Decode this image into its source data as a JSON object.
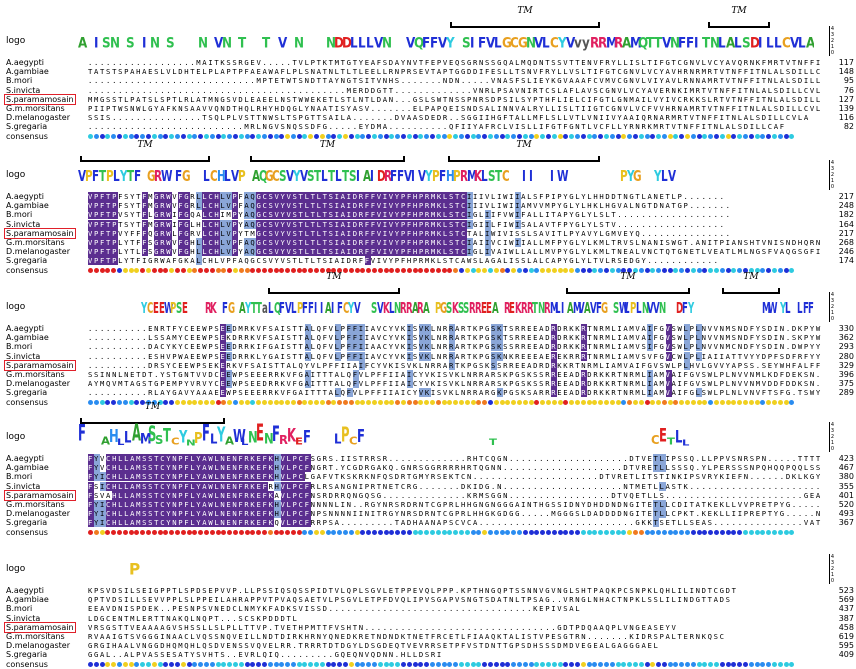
{
  "labels": {
    "logo": "logo",
    "consensus": "consensus",
    "tm": "TM"
  },
  "logo_scale": [
    "4",
    "3",
    "2",
    "1",
    "0"
  ],
  "colors": {
    "highlight_dark": "#5b2e8f",
    "highlight_light": "#8aa6d8",
    "box_red": "#e0202a",
    "dot_palette": [
      "#1f2fd6",
      "#2a8cf0",
      "#2ecbe0",
      "#f0d020",
      "#f07a20",
      "#e02020",
      "#30c050"
    ]
  },
  "blocks": [
    {
      "logo_text": "AxISNxSxINxSxxxNxVNxTxxTxVxNxxxNDDLLLVNxxVQFFVYxSIFVLGCGNVLCYVvyRRMRAMQTTVNFFITNLALSDILLCVLA",
      "rows": [
        {
          "name": "A.aegypti",
          "seq": "..................MAITKSSRGEV.....TVLPTKTMTGTYEAFSDAYNVTFEPVEQSGRNSSGQALMQDNTSSVTTENVFRYLLISLTIFGTCGNVLVCYAVQRNKFMRTVTNFFITNLALSDILLCVLA",
          "num": "117"
        },
        {
          "name": "A.gambiae",
          "seq": "TATSTSPAHAESLVLDHTELPLAPTPFAEAWAFLPLSNATNLTLTLEELLRNPRSEVTAPTGGDDIFESLLTSNVFRYLLVSLTIFGTCGNVLVCYAVHRNRMRTVTNFFITNLALSDILLCVLA",
          "num": "148"
        },
        {
          "name": "B.mori",
          "seq": "............................MPTETWTSNDTTAYNGTSITVNHS.......NDN.....VNASFSLIEYKGVAAAFCVMVCGNVLVIYAVLRNNAMRTVTNFFITNLALSDILLCVLA",
          "num": "95"
        },
        {
          "name": "S.invicta",
          "seq": "...........................................MERDDGTT.............VNRLPSAVNIRTCSLAFLAVSCGNVLVCYAVERNKIMRTVTNFFITNLALSDILLCVLA",
          "num": "76"
        },
        {
          "name": "S.paramamosain",
          "seq": "MMGSSTLPATSLSPTLRLATMNGSVDLEAEELNSTWWEKETLSTLNTLDAN...GSLSWTNSSPNRSDPSILSYPTHFLIELCIFGTLGNMAILVYIVCRKKSLRTVTNFFITNLALSDILLCLLS",
          "num": "127",
          "highlight": true
        },
        {
          "name": "G.m.morsitans",
          "seq": "PIIPTWSNWLGYAFKNSAAVVQNDTHQLRHYHDQGLYNAATISYASV.......ELPAPQEISNDSALINNVALRYLLISLTIIGTCGNVLVCFVVHRNAMRTVTNFFITNLALSDILLCVLA",
          "num": "139"
        },
        {
          "name": "D.melanogaster",
          "seq": "SSIS...............TSQLPLVSTTNWSLTSPGTTSAILA.......DVAASDEDR..SGGIIHGFTALLMFLSLLVTLVNIIVYAAIQRNARMRTVTNFFITNLALSDILLCVLA",
          "num": "116"
        },
        {
          "name": "S.gregaria",
          "seq": "..........................MRLNGVSNQSSDFG.....EYDMA..........QFIIYAFRCLVISLLIFGTFGNTLVCFLLYRNRKMRTVTNFFITNLALSDILLCAF",
          "num": "82"
        }
      ]
    },
    {
      "logo_text": "VPFTPLYTFxGRWxFGxxLCHLVPxAQGCSVYVSTLTLTSIAIDRFFVIVYPFHPRMKLSTCxxIIxxIWxxxxxxxxPYGxxYLVxxxxxxxxxxxxxxxxxxxx",
      "rows": [
        {
          "name": "A.aegypti",
          "seq": "VPFTPFSYTFMGRWVFGRLLCHLVPFAQGCSVYVSTLTLTSIAIDRFFVIVYPFHPRMKLSTCIIIVLIWIIALSFPIPYGLYLHHDDTNGTLANETLP.......",
          "num": "217"
        },
        {
          "name": "A.gambiae",
          "seq": "VPFTPFSYTFMGRWVFGRLLCHLVPFAQGCSVYVSTLTLTSIAIDRFFVIVYPFHPRMKLSTCIIIVLIWIIAMVVMPYGLYLHKLHGVALNGTDNATGP.......",
          "num": "248"
        },
        {
          "name": "B.mori",
          "seq": "VPFTPVSYTFLGRWIFGQALCHIMPYAQGCSVYVSTLTLTSIAIDRFFVIVYPFHPRMKLSTCIGLIIFVWIFALLITAPYGLYLSLT...................",
          "num": "182"
        },
        {
          "name": "S.invicta",
          "seq": "VPFTPTSYTFMGRWIFGLHLCHLVPYAQGCSVYVSTLTLTSIAIDRFFVIVYPFHPRMKLSTCIGIILFIWISALAVTFPYGLYLSTV..................",
          "num": "164"
        },
        {
          "name": "S.paramamosain",
          "seq": "VPFTPVYFFFQGRWLFGRVLCHLVPYTMGCSVYVSTLTLTSIAIDRFFVIVYPFHPRMKLSTCTALIWIVISSLSAVITLPYAVYLGMVEYQ...............",
          "num": "217",
          "highlight": true
        },
        {
          "name": "G.m.morsitans",
          "seq": "VPFTPLYTFFSGRWVFGHLLCHLVPFAQGCSVYVSTLTLTSIAIDRFFVIVYPFHPRMKLSTCIAIIVCIWIIALLMFPYGLYLKMLTRVSLNANISWGT.ANITPIANSHTVNISNDHQRNYDAYMQVV",
          "num": "268"
        },
        {
          "name": "D.melanogaster",
          "seq": "VPFTPLYTLFSGRWVFGHLLCHLVPYAQGCSVYVSTLTLTSIAIDRFFVIVYPFHPRMKLSTCIGLIVAIWLLALLMVPYGLYLKMLTNEALVNCTQTGNETLVEATLMLNGSFVAQGSGFIEAPDSTSATQ",
          "num": "246"
        },
        {
          "name": "S.gregaria",
          "seq": "VPFTPLYTFIGRWAFGKALCHLVPFAQGCSVYVSTLTLTSIAIDRFFVIVYPFHPRMKLSTCAWSLAGALISSLALCAPYGLYLTVLRSEDGY............",
          "num": "174"
        }
      ]
    },
    {
      "logo_text": "xxxxxxxxxxxYCEEWPSExxxRKxFGxAYTTaLQFVLPFFIIAIFCYVxxSVKLNRRARAxPGSKSSRREEAxREKRRTNRMLIAMVAVFGxSWLPLNVVNxxDFYxxxxxxxxxxxxMWxYLxLFF",
      "rows": [
        {
          "name": "A.aegypti",
          "seq": "..........ENRTFYCEEWPSEEDMRKVFSAISTTALQFVLPFFIIAVCYVKISVKLNRRARTKPGSKTSRREEADRDRKKRTNRMLIAMVAIFGVSWLPLNVVNMSNDFYSDIN.DKPYWMLFF",
          "num": "330"
        },
        {
          "name": "A.gambiae",
          "seq": "..........LSSAMYCEEWPSEKDRRKVFSAISTTALQFVLPFFIIAVCYVKISVKLNRRARTKPGSKTSRREEADRDRKKRTNRMLIAMVAIFGVSWLPLNVVNMSNDFYSDIN.SKPYWMLFF",
          "num": "362"
        },
        {
          "name": "B.mori",
          "seq": "..........DACYKYCEEWPSEEDRRKIFGAISTTALQFVLPFFIIAACYVKISVKLNRRARTKPGSKSSRREEADRDRKKRTNRMLIAMVSIFGVSWLPLNVVNMCNDFYSDIN.DWPYYHLIF",
          "num": "293"
        },
        {
          "name": "S.invicta",
          "seq": "..........ESHVPWAEEWPSEEDRRKLYGAISTTALQFVLPFFIIAVCYVKISVKLNRRARTKPGSKNKREEEAEREKRRRTNRMLIAMVSVFGVCWLPLIAIIATTVYYDPFSDFRFYYMFPF",
          "num": "280"
        },
        {
          "name": "S.paramamosain",
          "seq": "..........DRSYCEEWPSEKERKVFSAISTTALQYVLPFFIIAIFCYVKISVKLNRRARTKPGSKSSRREEADRDRKKRTNRMLIAMVAIFGVSWLPLHVLGVVYAPSS.SEYWHFALFF",
          "num": "329",
          "highlight": true
        },
        {
          "name": "G.m.morsitans",
          "seq": "SSINNLNETDT.YSTGNTVVDCEEWPSEEERRKVFGAITTTALQFVLPFFIIAICYVKISVKLNRRARSKPGSKSSRREEADRDRKKRTNRMLIAMVAIFGVSWLPLNVVNMLKDFDEKSN.KEYFMLFF",
          "num": "396"
        },
        {
          "name": "D.melanogaster",
          "seq": "AYMQVMTAGSTGPEMPYVRVYCEEWPSEEDRRKVFGAITTTALQFVLPFFIIAICYVKISVKLNRRARSKPGSKSSRREEADRDRKKRTNRMLIAMVAIFGVSWLPLNVVNMVDDFDDKSN.EWRYYTLFF",
          "num": "375"
        },
        {
          "name": "S.gregaria",
          "seq": "..........RLAYGAVYAAAEEWPSEEERRKVFGAITTTALQFVLPFFIIAICYVKISVKLNRRARGKPGSKSARRREEADRDRKKRTNRMLIAMVAIFGLSWLPLNLVNVFTSFG.TSWYWHLLF",
          "num": "289"
        }
      ]
    },
    {
      "logo_text": "FxxAHLLAMSSTCYNPFLYAWLNENFRKEFxxxLPCFxxxxxxxxxxxxxxxxTxxxxxxxxxxxxxxxxxxxxCETLLxxxxxxxxxxxxxxxx",
      "rows": [
        {
          "name": "A.aegypti",
          "seq": "FYVCHLLAMSSTCYNPFLYAWLNENFRKEFKHVLPCFSGRS.IISTRRSR.............RHTCQGN....................DTVETLIPSSQ.LLPPVSNRSPN.....TTTTTTTDSN",
          "num": "423"
        },
        {
          "name": "A.gambiae",
          "seq": "FYVCHLLAMSSTCYNPFLYAWLNENFRKEFKHVLPCFNGRT.YCGDRGAKQ.GNRSGGRRRRHRTQGNN....................DTVRETLLSSSQ.YLPERSSSNPQHQQPQQLSSSSSQGGN",
          "num": "467"
        },
        {
          "name": "B.mori",
          "seq": "FYICHLLAMSSTCYNPFLYAWLNENFRKEFKHVLPCLGAFVTKSKRKNFQSDRTGMYRSEKTCN.....................DTVRETLITSTINKIPSVRYKIEFN......DKLKGYD",
          "num": "380"
        },
        {
          "name": "S.invicta",
          "seq": "FSICHLLAMSSTCYNPFLYAWLNENFRKEFRHVLPCFRLRSANGNIPRTNETCRG.......DKIDG.N....................NTMETLLASTK.......................AQN",
          "num": "355"
        },
        {
          "name": "S.paramamosain",
          "seq": "FSVAHLLAMSSTCYNPFLYAWLNENFRKEFKAVLPCFNSRDRRQNGQSG..............KRMSGGN.................DTVQETLLS.......................GEAS",
          "num": "401",
          "highlight": true
        },
        {
          "name": "G.m.morsitans",
          "seq": "FYICHLLAMSSTCYNPFLYAWLNENFRKEFKHVLPCFNNNNLIN..RGYNRSRDRNTCGPRLHHGNGNGGGAINTHGSSIDNYDHDDNDNGITETLLCDITATKEKLLVVPRETPYG.....NGRNILSPCLE",
          "num": "520"
        },
        {
          "name": "D.melanogaster",
          "seq": "FYICHLLAMSSTCYNPFLYAWLNENFRKEFKHVLPCFNPSNNNNIINITRGYNRSDRNTCGPRLHHGKGDGG.....MGGGSLDADDDDNGITETLLCPKT.KEKLLIIPREPTYG.....NGRTGAVSPILS",
          "num": "493"
        },
        {
          "name": "S.gregaria",
          "seq": "FYICHLLAMSSTCYNPFLYAWLNENFRKEFKQVLPCFRRPSA.........TADHAANAPSCVCA..........................GKKTSETLLSEAS...............VATTTAQ.....QHRDAPVDVKD",
          "num": "367"
        }
      ]
    },
    {
      "logo_text": "xxxxxPxxxxxxxxxxxxxxxxxxxxxxxxxxxxxxxxxxxxxxxxxxxxxxxxxxxxxxxxxxxxxxxxxx",
      "rows": [
        {
          "name": "A.aegypti",
          "seq": "KPSVDSILSEIGPPTLSPDSEPVVP.LLPSSIQSQSSPIDTVLQPLSGVLETPPEVQLPPP.KPTHNGQPTSSNNVGVNGLSHTPAQKPCSNPKLQHLILINDTCGDT",
          "num": "523"
        },
        {
          "name": "A.gambiae",
          "seq": "QPTVDSILLSEVVPPLSLPPEILAHRAPPVTPVAQSAETVLPSGVLETPFDVQLIPVSGAPVSNGTSDATNLTPSAG..VRNGLNHACTNPKLSSLILINDGTTADS",
          "num": "569"
        },
        {
          "name": "B.mori",
          "seq": "EEAVDNISPDEK..PESNPSVNEDCLNMYKFADKSVISSD..................................KEPIVSAL",
          "num": "437"
        },
        {
          "name": "S.invicta",
          "seq": "LDGCENTMLERTTNAKQLNQPT...SCSKPDDDTL",
          "num": "387"
        },
        {
          "name": "S.paramamosain",
          "seq": "VRSGSTTVEAAAAGVSHSSLLSLPLLTTVP.TVETHPMTTFVSHTN................................GDTPDQAAQPLVNGEASEYV",
          "num": "458",
          "highlight": true
        },
        {
          "name": "G.m.morsitans",
          "seq": "RVAAIGTSVGGGINAACLVQSSNQVEILLNDTDIRKHRNYQNEDKRETNDNDKTNETFRCETLFIAAQKTALISTVPESGTRN.......KIDRSPALTERNKQSC",
          "num": "619"
        },
        {
          "name": "D.melanogaster",
          "seq": "GRGIHAALVNGGDHQMQHLQSDVENSSVQVELRR.TRRRTDTDGYLDSGDEQTVEVRRSETPFVSTDNTTGPSDHSSSDMDVEGEALGAGGGAEL",
          "num": "595"
        },
        {
          "name": "S.gregaria",
          "seq": "GGAL..ALPVASSESATYSVHTS..EVRLQIQ.........GQEQNVQDNN.HLLDSRI",
          "num": "409"
        }
      ]
    }
  ]
}
